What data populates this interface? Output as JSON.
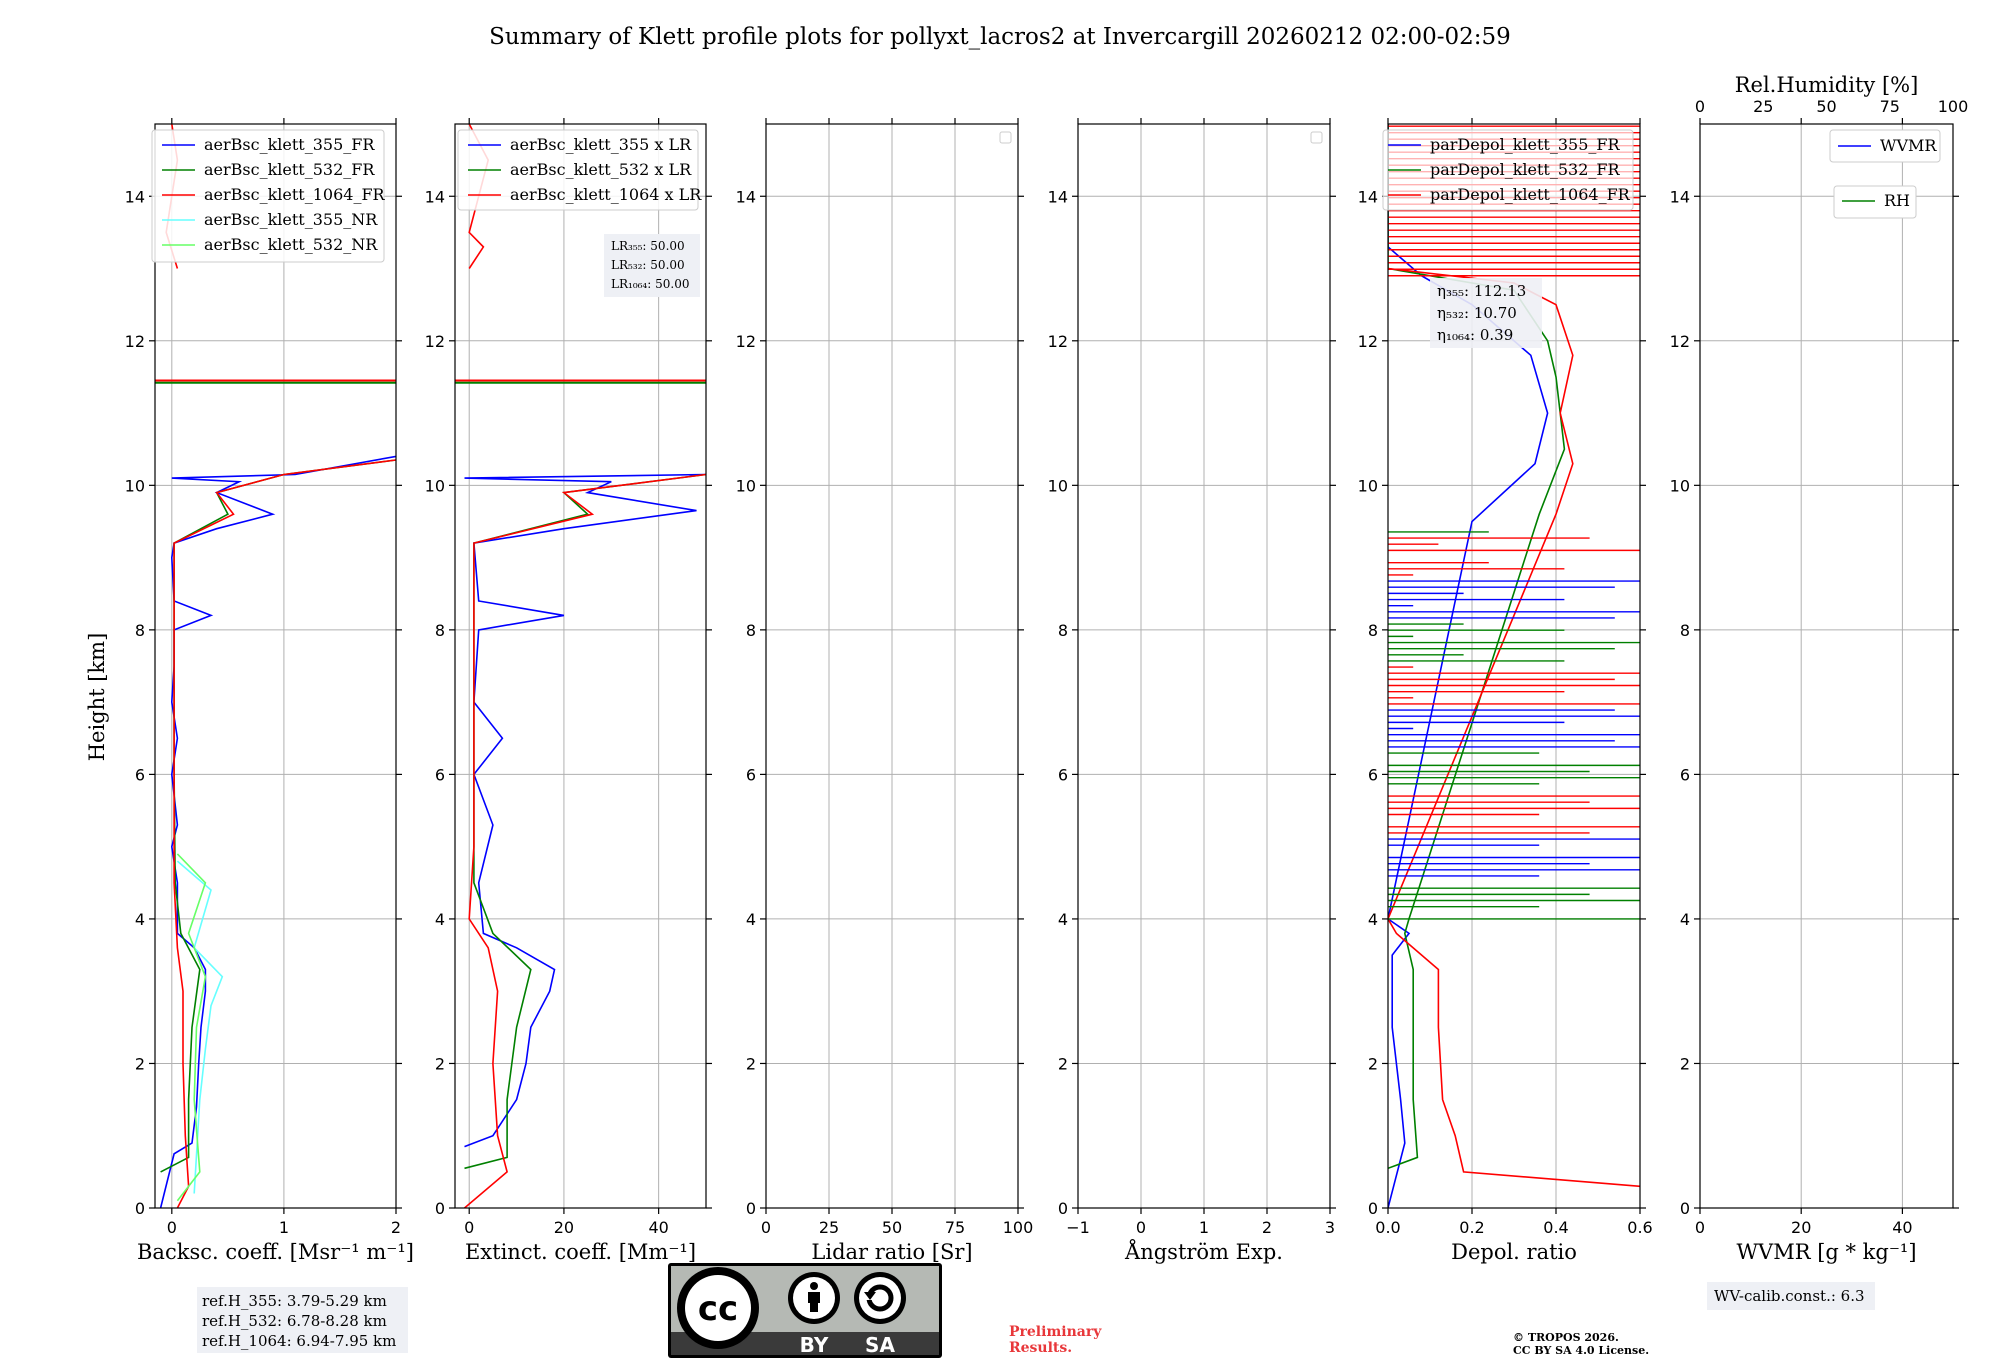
{
  "title": "Summary of Klett profile plots for pollyxt_lacros2 at Invercargill 20260212 02:00-02:59",
  "ylabel": "Height [km]",
  "colors": {
    "blue": "#0000ff",
    "green": "#008000",
    "red": "#ff0000",
    "cyan": "#66ffff",
    "lightgreen": "#66ff66",
    "grid": "#b0b0b0",
    "boxbg": "#eef0f5"
  },
  "chart_data": [
    {
      "id": "backscatter",
      "type": "line",
      "xlabel": "Backsc. coeff. [Msr⁻¹ m⁻¹]",
      "xlim": [
        -0.15,
        2
      ],
      "xticks": [
        0,
        1,
        2
      ],
      "xtick_labels": [
        "0",
        "1",
        "2"
      ],
      "ylim": [
        0,
        15
      ],
      "yticks": [
        0,
        2,
        4,
        6,
        8,
        10,
        12,
        14
      ],
      "legend": [
        "aerBsc_klett_355_FR",
        "aerBsc_klett_532_FR",
        "aerBsc_klett_1064_FR",
        "aerBsc_klett_355_NR",
        "aerBsc_klett_532_NR"
      ],
      "series": [
        {
          "name": "aerBsc_klett_355_FR",
          "color": "blue",
          "points": [
            [
              -0.1,
              0
            ],
            [
              0.02,
              0.75
            ],
            [
              0.18,
              0.9
            ],
            [
              0.22,
              1.4
            ],
            [
              0.24,
              2
            ],
            [
              0.26,
              2.5
            ],
            [
              0.3,
              3
            ],
            [
              0.3,
              3.3
            ],
            [
              0.2,
              3.6
            ],
            [
              0.05,
              3.8
            ],
            [
              0.05,
              4.5
            ],
            [
              0.0,
              5
            ],
            [
              0.05,
              5.3
            ],
            [
              0.0,
              6
            ],
            [
              0.05,
              6.5
            ],
            [
              0.0,
              7
            ],
            [
              0.02,
              7.5
            ],
            [
              0.02,
              8
            ],
            [
              0.35,
              8.2
            ],
            [
              0.02,
              8.4
            ],
            [
              0.0,
              9
            ],
            [
              0.02,
              9.2
            ],
            [
              0.4,
              9.4
            ],
            [
              0.9,
              9.6
            ],
            [
              0.4,
              9.9
            ],
            [
              0.6,
              10.05
            ],
            [
              0.0,
              10.1
            ],
            [
              1.1,
              10.15
            ],
            [
              2.0,
              10.4
            ]
          ]
        },
        {
          "name": "aerBsc_klett_532_FR",
          "color": "green",
          "points": [
            [
              -0.1,
              0.5
            ],
            [
              0.15,
              0.7
            ],
            [
              0.15,
              1.5
            ],
            [
              0.18,
              2.5
            ],
            [
              0.25,
              3.3
            ],
            [
              0.08,
              3.8
            ],
            [
              0.03,
              4.5
            ],
            [
              0.02,
              6
            ],
            [
              0.02,
              8
            ],
            [
              0.02,
              9.2
            ],
            [
              0.5,
              9.6
            ],
            [
              0.4,
              9.9
            ],
            [
              1.0,
              10.15
            ],
            [
              2.0,
              10.35
            ]
          ]
        },
        {
          "name": "aerBsc_klett_1064_FR",
          "color": "red",
          "points": [
            [
              0.05,
              0
            ],
            [
              0.15,
              0.3
            ],
            [
              0.12,
              1.0
            ],
            [
              0.1,
              2.0
            ],
            [
              0.1,
              3.0
            ],
            [
              0.05,
              3.6
            ],
            [
              0.02,
              4.5
            ],
            [
              0.02,
              6
            ],
            [
              0.02,
              8
            ],
            [
              0.02,
              9.2
            ],
            [
              0.55,
              9.6
            ],
            [
              0.4,
              9.9
            ],
            [
              1.0,
              10.15
            ],
            [
              2.0,
              10.35
            ]
          ]
        },
        {
          "name": "aerBsc_klett_355_NR",
          "color": "cyan",
          "points": [
            [
              0.2,
              0.2
            ],
            [
              0.25,
              1.5
            ],
            [
              0.3,
              2.2
            ],
            [
              0.35,
              2.8
            ],
            [
              0.45,
              3.2
            ],
            [
              0.2,
              3.6
            ],
            [
              0.35,
              4.4
            ],
            [
              0.05,
              4.8
            ]
          ]
        },
        {
          "name": "aerBsc_klett_532_NR",
          "color": "lightgreen",
          "points": [
            [
              0.05,
              0.1
            ],
            [
              0.25,
              0.5
            ],
            [
              0.2,
              1.5
            ],
            [
              0.22,
              2.5
            ],
            [
              0.3,
              3.2
            ],
            [
              0.15,
              3.8
            ],
            [
              0.3,
              4.5
            ],
            [
              0.05,
              4.9
            ]
          ]
        },
        {
          "name": "overlay_355_high",
          "color": "red",
          "points": [
            [
              0.05,
              13
            ],
            [
              -0.05,
              13.5
            ],
            [
              0.0,
              14
            ],
            [
              0.05,
              14.5
            ],
            [
              0.0,
              15
            ]
          ]
        }
      ],
      "hlines": [
        11.42,
        11.45
      ],
      "box_lines": [
        "ref.H_355: 3.79-5.29 km",
        "ref.H_532: 6.78-8.28 km",
        "ref.H_1064: 6.94-7.95 km"
      ]
    },
    {
      "id": "extinction",
      "type": "line",
      "xlabel": "Extinct. coeff. [Mm⁻¹]",
      "xlim": [
        -3,
        50
      ],
      "xticks": [
        0,
        20,
        40
      ],
      "xtick_labels": [
        "0",
        "20",
        "40"
      ],
      "ylim": [
        0,
        15
      ],
      "yticks": [
        0,
        2,
        4,
        6,
        8,
        10,
        12,
        14
      ],
      "legend": [
        "aerBsc_klett_355 x LR",
        "aerBsc_klett_532 x LR",
        "aerBsc_klett_1064 x LR"
      ],
      "series": [
        {
          "name": "aerBsc_klett_355 x LR",
          "color": "blue",
          "points": [
            [
              -1,
              0.85
            ],
            [
              5,
              1.0
            ],
            [
              10,
              1.5
            ],
            [
              12,
              2.0
            ],
            [
              13,
              2.5
            ],
            [
              17,
              3.0
            ],
            [
              18,
              3.3
            ],
            [
              10,
              3.6
            ],
            [
              3,
              3.8
            ],
            [
              2,
              4.5
            ],
            [
              5,
              5.3
            ],
            [
              1,
              6
            ],
            [
              7,
              6.5
            ],
            [
              1,
              7
            ],
            [
              2,
              8
            ],
            [
              20,
              8.2
            ],
            [
              2,
              8.4
            ],
            [
              1,
              9.2
            ],
            [
              20,
              9.4
            ],
            [
              48,
              9.65
            ],
            [
              25,
              9.9
            ],
            [
              30,
              10.05
            ],
            [
              -1,
              10.1
            ],
            [
              50,
              10.15
            ]
          ]
        },
        {
          "name": "aerBsc_klett_532 x LR",
          "color": "green",
          "points": [
            [
              -1,
              0.55
            ],
            [
              8,
              0.7
            ],
            [
              8,
              1.5
            ],
            [
              10,
              2.5
            ],
            [
              13,
              3.3
            ],
            [
              5,
              3.8
            ],
            [
              1,
              4.5
            ],
            [
              1,
              6
            ],
            [
              1,
              8
            ],
            [
              1,
              9.2
            ],
            [
              25,
              9.6
            ],
            [
              20,
              9.9
            ],
            [
              50,
              10.15
            ]
          ]
        },
        {
          "name": "aerBsc_klett_1064 x LR",
          "color": "red",
          "points": [
            [
              -1,
              0
            ],
            [
              8,
              0.5
            ],
            [
              6,
              1.0
            ],
            [
              5,
              2.0
            ],
            [
              6,
              3.0
            ],
            [
              4,
              3.6
            ],
            [
              0,
              4.0
            ],
            [
              1,
              5
            ],
            [
              1,
              6
            ],
            [
              1,
              8
            ],
            [
              1,
              9.2
            ],
            [
              26,
              9.6
            ],
            [
              20,
              9.9
            ],
            [
              50,
              10.15
            ]
          ]
        },
        {
          "name": "overlay_high",
          "color": "red",
          "points": [
            [
              0,
              13
            ],
            [
              3,
              13.3
            ],
            [
              0,
              13.5
            ],
            [
              4,
              14.5
            ],
            [
              0,
              15
            ]
          ]
        }
      ],
      "hlines": [
        11.42,
        11.45
      ],
      "lr_lines": [
        "LR₃₅₅: 50.00",
        "LR₅₃₂: 50.00",
        "LR₁₀₆₄: 50.00"
      ]
    },
    {
      "id": "lidar_ratio",
      "type": "line",
      "xlabel": "Lidar ratio [Sr]",
      "xlim": [
        0,
        100
      ],
      "xticks": [
        0,
        25,
        50,
        75,
        100
      ],
      "xtick_labels": [
        "0",
        "25",
        "50",
        "75",
        "100"
      ],
      "ylim": [
        0,
        15
      ],
      "yticks": [
        0,
        2,
        4,
        6,
        8,
        10,
        12,
        14
      ],
      "series": []
    },
    {
      "id": "angstrom",
      "type": "line",
      "xlabel": "Ångström Exp.",
      "xlim": [
        -1,
        3
      ],
      "xticks": [
        -1,
        0,
        1,
        2,
        3
      ],
      "xtick_labels": [
        "−1",
        "0",
        "1",
        "2",
        "3"
      ],
      "ylim": [
        0,
        15
      ],
      "yticks": [
        0,
        2,
        4,
        6,
        8,
        10,
        12,
        14
      ],
      "series": []
    },
    {
      "id": "depol",
      "type": "line",
      "xlabel": "Depol. ratio",
      "xlim": [
        0,
        0.6
      ],
      "xticks": [
        0,
        0.2,
        0.4,
        0.6
      ],
      "xtick_labels": [
        "0.0",
        "0.2",
        "0.4",
        "0.6"
      ],
      "ylim": [
        0,
        15
      ],
      "yticks": [
        0,
        2,
        4,
        6,
        8,
        10,
        12,
        14
      ],
      "legend": [
        "parDepol_klett_355_FR",
        "parDepol_klett_532_FR",
        "parDepol_klett_1064_FR"
      ],
      "series": [
        {
          "name": "parDepol_klett_355_FR",
          "color": "blue",
          "points": [
            [
              0.0,
              0
            ],
            [
              0.04,
              0.9
            ],
            [
              0.03,
              1.5
            ],
            [
              0.01,
              2.5
            ],
            [
              0.01,
              3.5
            ],
            [
              0.05,
              3.8
            ],
            [
              0.0,
              4.0
            ],
            [
              0.2,
              9.5
            ],
            [
              0.35,
              10.3
            ],
            [
              0.38,
              11.0
            ],
            [
              0.34,
              11.8
            ],
            [
              0.2,
              12.5
            ],
            [
              0.08,
              12.9
            ],
            [
              0.0,
              13.3
            ],
            [
              0.0,
              15
            ]
          ]
        },
        {
          "name": "parDepol_klett_532_FR",
          "color": "green",
          "points": [
            [
              0.0,
              0.55
            ],
            [
              0.07,
              0.7
            ],
            [
              0.06,
              1.5
            ],
            [
              0.06,
              2.5
            ],
            [
              0.06,
              3.3
            ],
            [
              0.04,
              3.8
            ],
            [
              0.05,
              4.0
            ],
            [
              0.36,
              9.6
            ],
            [
              0.42,
              10.5
            ],
            [
              0.4,
              11.5
            ],
            [
              0.38,
              12.0
            ],
            [
              0.3,
              12.7
            ],
            [
              0.0,
              13.0
            ],
            [
              0.0,
              15
            ]
          ]
        },
        {
          "name": "parDepol_klett_1064_FR",
          "color": "red",
          "points": [
            [
              0.6,
              0.3
            ],
            [
              0.18,
              0.5
            ],
            [
              0.16,
              1.0
            ],
            [
              0.13,
              1.5
            ],
            [
              0.12,
              2.5
            ],
            [
              0.12,
              3.3
            ],
            [
              0.02,
              3.8
            ],
            [
              0.0,
              4.0
            ],
            [
              0.4,
              9.6
            ],
            [
              0.44,
              10.3
            ],
            [
              0.41,
              11.0
            ],
            [
              0.44,
              11.8
            ],
            [
              0.4,
              12.5
            ],
            [
              0.3,
              12.8
            ],
            [
              0.0,
              13.0
            ]
          ]
        }
      ],
      "eta_lines": [
        "η₃₅₅: 112.13",
        "η₅₃₂: 10.70",
        "η₁₀₆₄: 0.39"
      ]
    },
    {
      "id": "wvmr",
      "type": "line",
      "xlabel": "WVMR [g * kg⁻¹]",
      "xlim": [
        0,
        50
      ],
      "xticks": [
        0,
        20,
        40
      ],
      "xtick_labels": [
        "0",
        "20",
        "40"
      ],
      "top_xlabel": "Rel.Humidity [%]",
      "top_xlim": [
        0,
        100
      ],
      "top_xticks": [
        0,
        25,
        50,
        75,
        100
      ],
      "top_xtick_labels": [
        "0",
        "25",
        "50",
        "75",
        "100"
      ],
      "ylim": [
        0,
        15
      ],
      "yticks": [
        0,
        2,
        4,
        6,
        8,
        10,
        12,
        14
      ],
      "legend": [
        "WVMR",
        "RH"
      ],
      "series": [],
      "calib": "WV-calib.const.: 6.3"
    }
  ],
  "footer": {
    "cc_label": "cc",
    "by_label": "BY",
    "sa_label": "SA",
    "preliminary_1": "Preliminary",
    "preliminary_2": "Results.",
    "copyright_1": "© TROPOS 2026.",
    "copyright_2": "CC BY SA 4.0 License."
  }
}
